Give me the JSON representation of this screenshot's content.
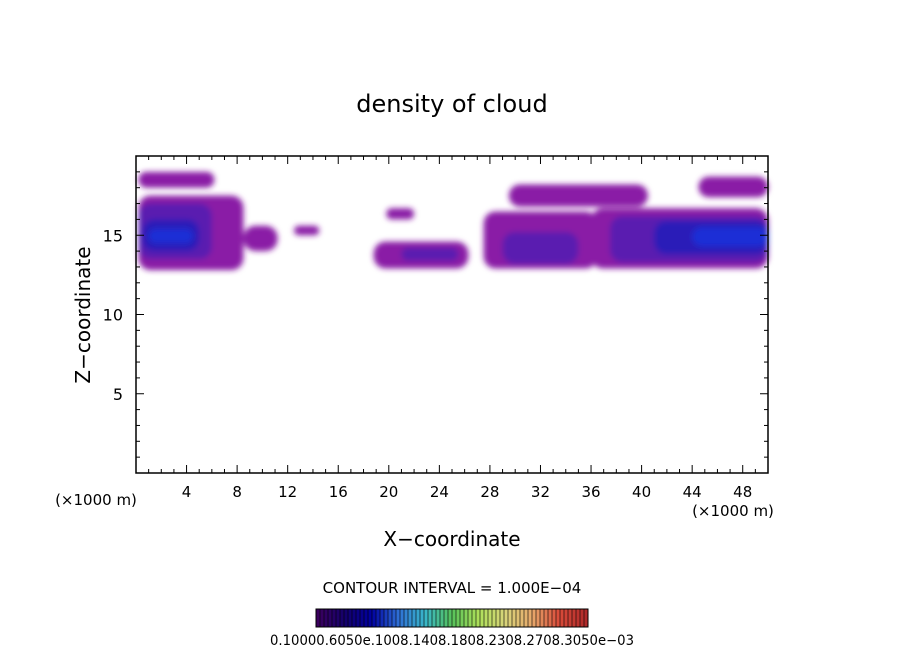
{
  "chart_data": {
    "type": "heatmap",
    "title": "density of cloud",
    "xlabel": "X−coordinate",
    "ylabel": "Z−coordinate",
    "x_unit": "(×1000 m)",
    "z_unit": "(×1000 m)",
    "xlim": [
      0,
      50
    ],
    "ylim": [
      0,
      20
    ],
    "x_ticks": [
      "4",
      "8",
      "12",
      "16",
      "20",
      "24",
      "28",
      "32",
      "36",
      "40",
      "44",
      "48"
    ],
    "y_ticks": [
      "5",
      "10",
      "15"
    ],
    "contour_interval_label": "CONTOUR INTERVAL = 1.000E−04",
    "colorbar_labels": "0.10000.6050e.1008.1408.1808.2308.2708.3050e−03",
    "colorbar_colors": [
      "#3b005e",
      "#14006b",
      "#0000a0",
      "#2f6fd6",
      "#39b7c9",
      "#57c25a",
      "#aee05a",
      "#d9d47a",
      "#e7a86b",
      "#d94b3a",
      "#b02a2a"
    ],
    "cloud_colors": {
      "outer": "#8a1fa6",
      "mid": "#5a1fb0",
      "inner": "#2a1fb8",
      "core": "#1a2fd6"
    },
    "cloud_regions": [
      {
        "x": [
          0.2,
          6.2
        ],
        "z": [
          18.0,
          19.0
        ],
        "level": "outer"
      },
      {
        "x": [
          0.2,
          8.5
        ],
        "z": [
          12.8,
          17.5
        ],
        "level": "outer"
      },
      {
        "x": [
          0.2,
          6.0
        ],
        "z": [
          13.5,
          17.0
        ],
        "level": "mid"
      },
      {
        "x": [
          0.5,
          5.0
        ],
        "z": [
          14.0,
          16.0
        ],
        "level": "inner"
      },
      {
        "x": [
          1.0,
          4.5
        ],
        "z": [
          14.5,
          15.4
        ],
        "level": "core"
      },
      {
        "x": [
          8.5,
          11.2
        ],
        "z": [
          14.0,
          15.6
        ],
        "level": "outer"
      },
      {
        "x": [
          12.5,
          14.5
        ],
        "z": [
          15.0,
          15.6
        ],
        "level": "outer"
      },
      {
        "x": [
          19.8,
          22.0
        ],
        "z": [
          16.0,
          16.7
        ],
        "level": "outer"
      },
      {
        "x": [
          18.8,
          26.3
        ],
        "z": [
          12.9,
          14.6
        ],
        "level": "outer"
      },
      {
        "x": [
          21.0,
          25.5
        ],
        "z": [
          13.4,
          14.2
        ],
        "level": "mid"
      },
      {
        "x": [
          27.5,
          36.5
        ],
        "z": [
          12.9,
          16.5
        ],
        "level": "outer"
      },
      {
        "x": [
          29.0,
          35.0
        ],
        "z": [
          13.2,
          15.2
        ],
        "level": "mid"
      },
      {
        "x": [
          36.0,
          50.0
        ],
        "z": [
          12.9,
          16.7
        ],
        "level": "outer"
      },
      {
        "x": [
          37.5,
          50.0
        ],
        "z": [
          13.3,
          16.2
        ],
        "level": "mid"
      },
      {
        "x": [
          41.0,
          50.0
        ],
        "z": [
          13.8,
          15.9
        ],
        "level": "inner"
      },
      {
        "x": [
          44.0,
          50.0
        ],
        "z": [
          14.3,
          15.5
        ],
        "level": "core"
      },
      {
        "x": [
          29.5,
          40.5
        ],
        "z": [
          16.8,
          18.2
        ],
        "level": "outer"
      },
      {
        "x": [
          44.5,
          50.0
        ],
        "z": [
          17.4,
          18.7
        ],
        "level": "outer"
      }
    ]
  }
}
